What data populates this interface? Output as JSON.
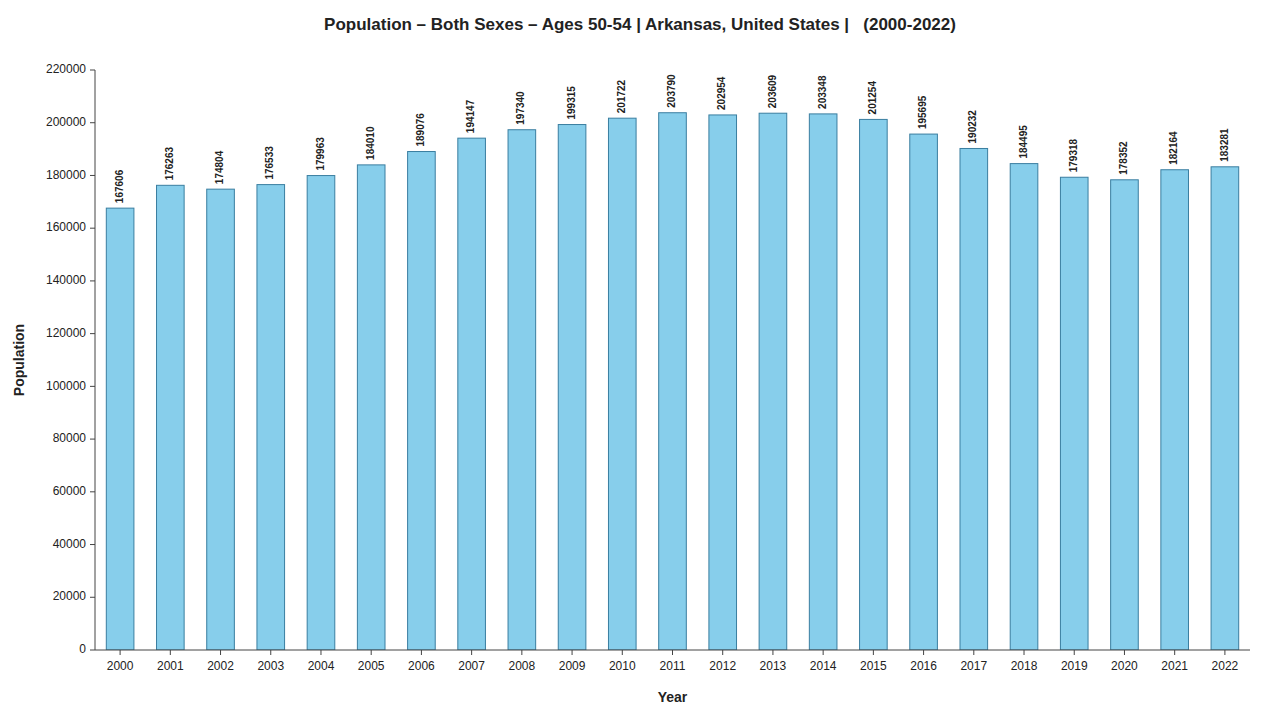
{
  "chart_data": {
    "type": "bar",
    "title": "Population – Both Sexes – Ages 50-54 | Arkansas, United States |   (2000-2022)",
    "x_label": "Year",
    "y_label": "Population",
    "categories": [
      "2000",
      "2001",
      "2002",
      "2003",
      "2004",
      "2005",
      "2006",
      "2007",
      "2008",
      "2009",
      "2010",
      "2011",
      "2012",
      "2013",
      "2014",
      "2015",
      "2016",
      "2017",
      "2018",
      "2019",
      "2020",
      "2021",
      "2022"
    ],
    "values": [
      167606,
      176263,
      174804,
      176533,
      179963,
      184010,
      189076,
      194147,
      197340,
      199315,
      201722,
      203790,
      202954,
      203609,
      203348,
      201254,
      195695,
      190232,
      184495,
      179318,
      178352,
      182164,
      183281
    ],
    "color": "#87CEEB",
    "ylim": [
      0,
      220000
    ],
    "yticks": [
      0,
      20000,
      40000,
      60000,
      80000,
      100000,
      120000,
      140000,
      160000,
      180000,
      200000,
      220000
    ],
    "grid": false,
    "data_labels": true
  }
}
